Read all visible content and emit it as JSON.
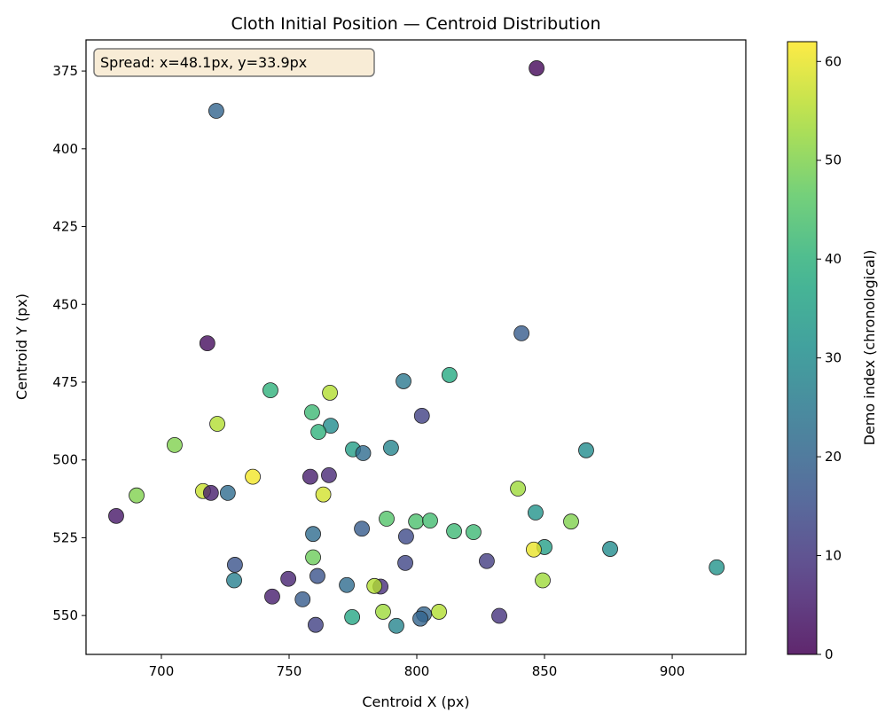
{
  "chart_data": {
    "type": "scatter",
    "title": "Cloth Initial Position — Centroid Distribution",
    "xlabel": "Centroid X (px)",
    "ylabel": "Centroid Y (px)",
    "xlim": [
      670.5,
      928.8
    ],
    "ylim": [
      562.5,
      365
    ],
    "y_inverted": true,
    "xticks": [
      700,
      750,
      800,
      850,
      900
    ],
    "yticks": [
      375,
      400,
      425,
      450,
      475,
      500,
      525,
      550
    ],
    "grid": false,
    "colormap": "viridis",
    "colorbar": {
      "label": "Demo index (chronological)",
      "range": [
        0,
        62
      ],
      "ticks": [
        0,
        10,
        20,
        30,
        40,
        50,
        60
      ]
    },
    "annotation": "Spread: x=48.1px, y=33.9px",
    "annotation_colors": {
      "fill": "#f8ecd6",
      "edge": "#777777"
    },
    "marker_edge_color": "#222222",
    "points": [
      [
        846.9,
        374.1,
        1
      ],
      [
        721.5,
        387.8,
        20
      ],
      [
        718.0,
        462.5,
        2
      ],
      [
        841.0,
        459.3,
        18
      ],
      [
        812.8,
        472.7,
        38
      ],
      [
        794.8,
        474.7,
        25
      ],
      [
        742.7,
        477.6,
        40
      ],
      [
        766.0,
        478.4,
        55
      ],
      [
        802.0,
        485.8,
        12
      ],
      [
        759.0,
        484.7,
        42
      ],
      [
        721.9,
        488.4,
        55
      ],
      [
        766.3,
        489.0,
        30
      ],
      [
        761.5,
        491.0,
        40
      ],
      [
        705.2,
        495.2,
        50
      ],
      [
        775.0,
        496.6,
        35
      ],
      [
        779.0,
        497.8,
        22
      ],
      [
        789.9,
        496.1,
        28
      ],
      [
        866.3,
        496.9,
        30
      ],
      [
        758.3,
        505.4,
        5
      ],
      [
        765.6,
        504.9,
        7
      ],
      [
        735.8,
        505.4,
        61
      ],
      [
        690.3,
        511.4,
        50
      ],
      [
        716.3,
        510.0,
        57
      ],
      [
        719.4,
        510.6,
        5
      ],
      [
        726.0,
        510.6,
        22
      ],
      [
        763.4,
        511.1,
        58
      ],
      [
        839.6,
        509.2,
        53
      ],
      [
        682.3,
        518.0,
        4
      ],
      [
        846.5,
        516.9,
        32
      ],
      [
        788.2,
        518.9,
        45
      ],
      [
        799.7,
        519.8,
        44
      ],
      [
        805.2,
        519.5,
        43
      ],
      [
        860.4,
        519.8,
        50
      ],
      [
        778.5,
        522.1,
        18
      ],
      [
        814.6,
        522.9,
        42
      ],
      [
        822.2,
        523.2,
        42
      ],
      [
        759.4,
        523.8,
        22
      ],
      [
        795.8,
        524.6,
        14
      ],
      [
        850.0,
        528.0,
        35
      ],
      [
        845.8,
        528.8,
        60
      ],
      [
        875.7,
        528.6,
        30
      ],
      [
        759.4,
        531.3,
        48
      ],
      [
        827.4,
        532.5,
        11
      ],
      [
        728.8,
        533.7,
        16
      ],
      [
        795.5,
        533.1,
        13
      ],
      [
        917.4,
        534.5,
        32
      ],
      [
        761.1,
        537.3,
        16
      ],
      [
        749.7,
        538.2,
        6
      ],
      [
        728.5,
        538.7,
        27
      ],
      [
        849.3,
        538.7,
        53
      ],
      [
        772.6,
        540.2,
        22
      ],
      [
        785.8,
        540.7,
        8
      ],
      [
        783.4,
        540.5,
        55
      ],
      [
        743.4,
        543.9,
        5
      ],
      [
        755.3,
        544.8,
        18
      ],
      [
        774.7,
        550.5,
        37
      ],
      [
        786.8,
        548.8,
        53
      ],
      [
        808.7,
        548.8,
        55
      ],
      [
        802.8,
        549.6,
        20
      ],
      [
        801.4,
        551.0,
        20
      ],
      [
        832.3,
        550.1,
        9
      ],
      [
        760.4,
        553.0,
        12
      ],
      [
        792.0,
        553.3,
        28
      ]
    ]
  }
}
